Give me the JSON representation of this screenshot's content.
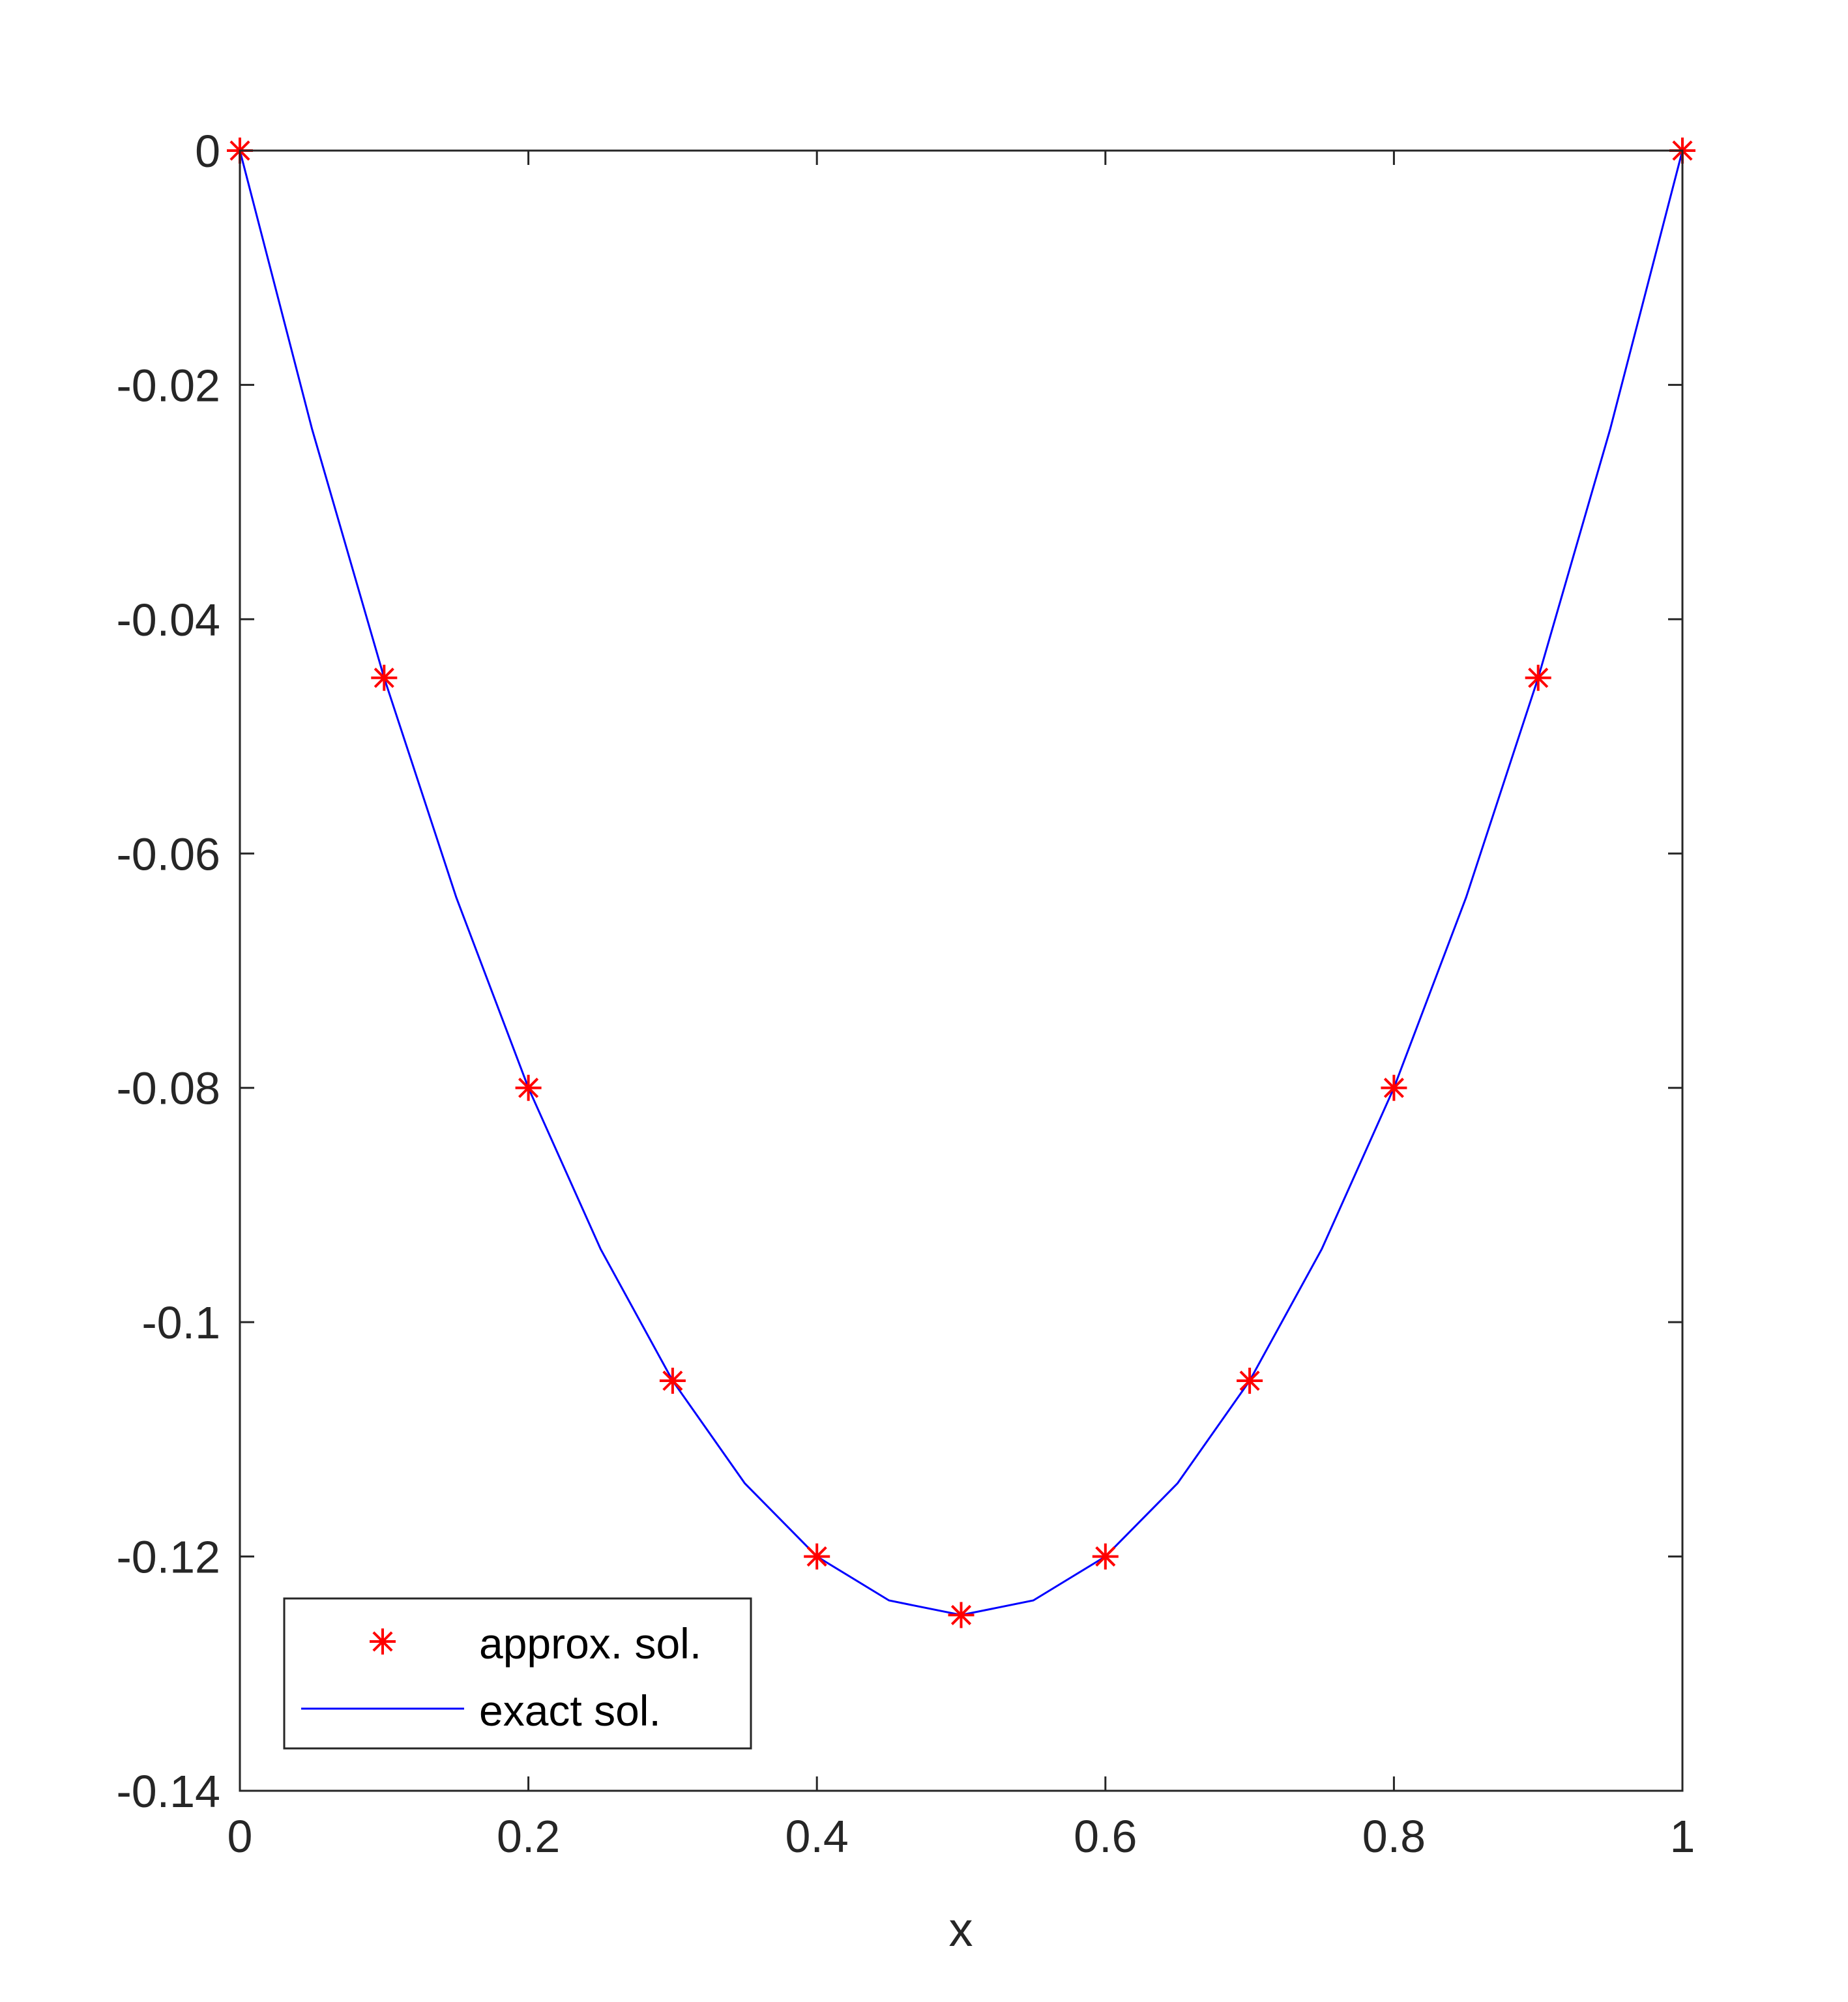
{
  "chart_data": {
    "type": "line",
    "title": "",
    "xlabel": "x",
    "ylabel": "",
    "xlim": [
      0,
      1
    ],
    "ylim": [
      -0.14,
      0
    ],
    "xticks": [
      0,
      0.2,
      0.4,
      0.6,
      0.8,
      1
    ],
    "xtick_labels": [
      "0",
      "0.2",
      "0.4",
      "0.6",
      "0.8",
      "1"
    ],
    "yticks": [
      0,
      -0.02,
      -0.04,
      -0.06,
      -0.08,
      -0.1,
      -0.12,
      -0.14
    ],
    "ytick_labels": [
      "0",
      "-0.02",
      "-0.04",
      "-0.06",
      "-0.08",
      "-0.1",
      "-0.12",
      "-0.14"
    ],
    "grid": false,
    "legend_position": "bottom-left",
    "series": [
      {
        "name": "approx. sol.",
        "style": "markers",
        "marker": "asterisk",
        "color": "#ff0000",
        "x": [
          0,
          0.1,
          0.2,
          0.3,
          0.4,
          0.5,
          0.6,
          0.7,
          0.8,
          0.9,
          1
        ],
        "y": [
          0,
          -0.045,
          -0.08,
          -0.105,
          -0.12,
          -0.125,
          -0.12,
          -0.105,
          -0.08,
          -0.045,
          0
        ]
      },
      {
        "name": "exact sol.",
        "style": "line",
        "color": "#0000ff",
        "x": [
          0,
          0.05,
          0.1,
          0.15,
          0.2,
          0.25,
          0.3,
          0.35,
          0.4,
          0.45,
          0.5,
          0.55,
          0.6,
          0.65,
          0.7,
          0.75,
          0.8,
          0.85,
          0.9,
          0.95,
          1
        ],
        "y": [
          0,
          -0.02375,
          -0.045,
          -0.06375,
          -0.08,
          -0.09375,
          -0.105,
          -0.11375,
          -0.12,
          -0.12375,
          -0.125,
          -0.12375,
          -0.12,
          -0.11375,
          -0.105,
          -0.09375,
          -0.08,
          -0.06375,
          -0.045,
          -0.02375,
          0
        ]
      }
    ]
  }
}
